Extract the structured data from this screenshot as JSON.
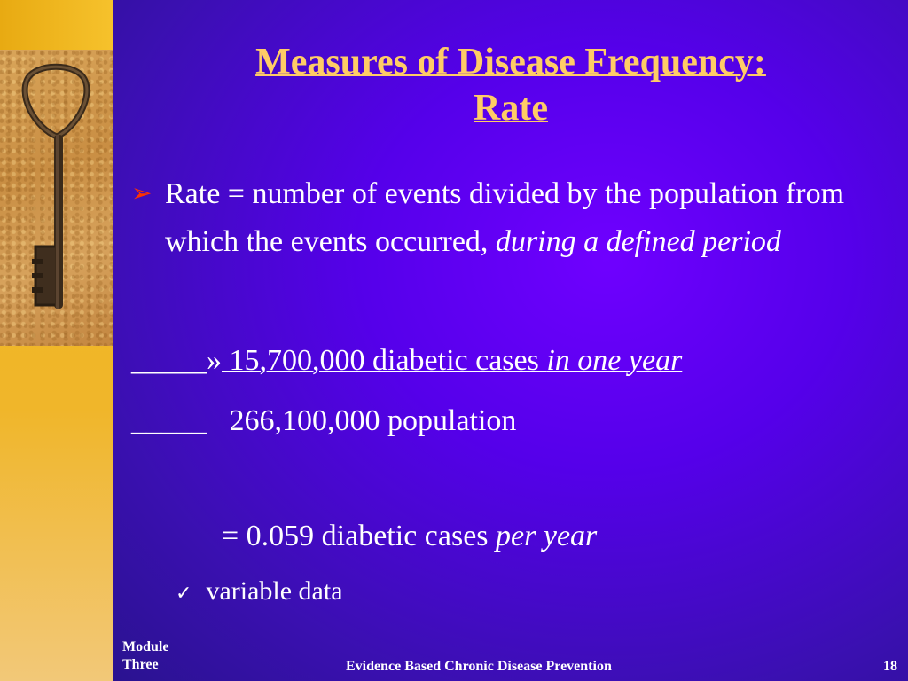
{
  "title": {
    "line1": "Measures of Disease Frequency:",
    "line2": " Rate"
  },
  "bullet": {
    "normal": "Rate = number of events divided by the population from which the events occurred, ",
    "italic": "during a defined period"
  },
  "fraction": {
    "blank1": "_____",
    "symbol": "»",
    "numerator": " 15,700,000 diabetic cases ",
    "numerator_italic": "in one year",
    "numerator_trail": "  ",
    "blank2": "_____",
    "denominator": "   266,100,000 population"
  },
  "result": {
    "normal": "= 0.059 diabetic cases ",
    "italic": "per year"
  },
  "sub_bullet": {
    "check": "✓",
    "text": "variable data"
  },
  "footer": {
    "module_line1": "Module",
    "module_line2": "Three",
    "center": "Evidence Based Chronic Disease Prevention",
    "page": "18"
  },
  "colors": {
    "title": "#ffcc66",
    "background": "#5500ea",
    "bullet_arrow": "#ff3300",
    "sidebar": "#f3ba1c"
  },
  "icons": {
    "bullet": "arrow-right-icon",
    "sub_bullet": "checkmark-icon",
    "image": "antique-key-photo"
  }
}
